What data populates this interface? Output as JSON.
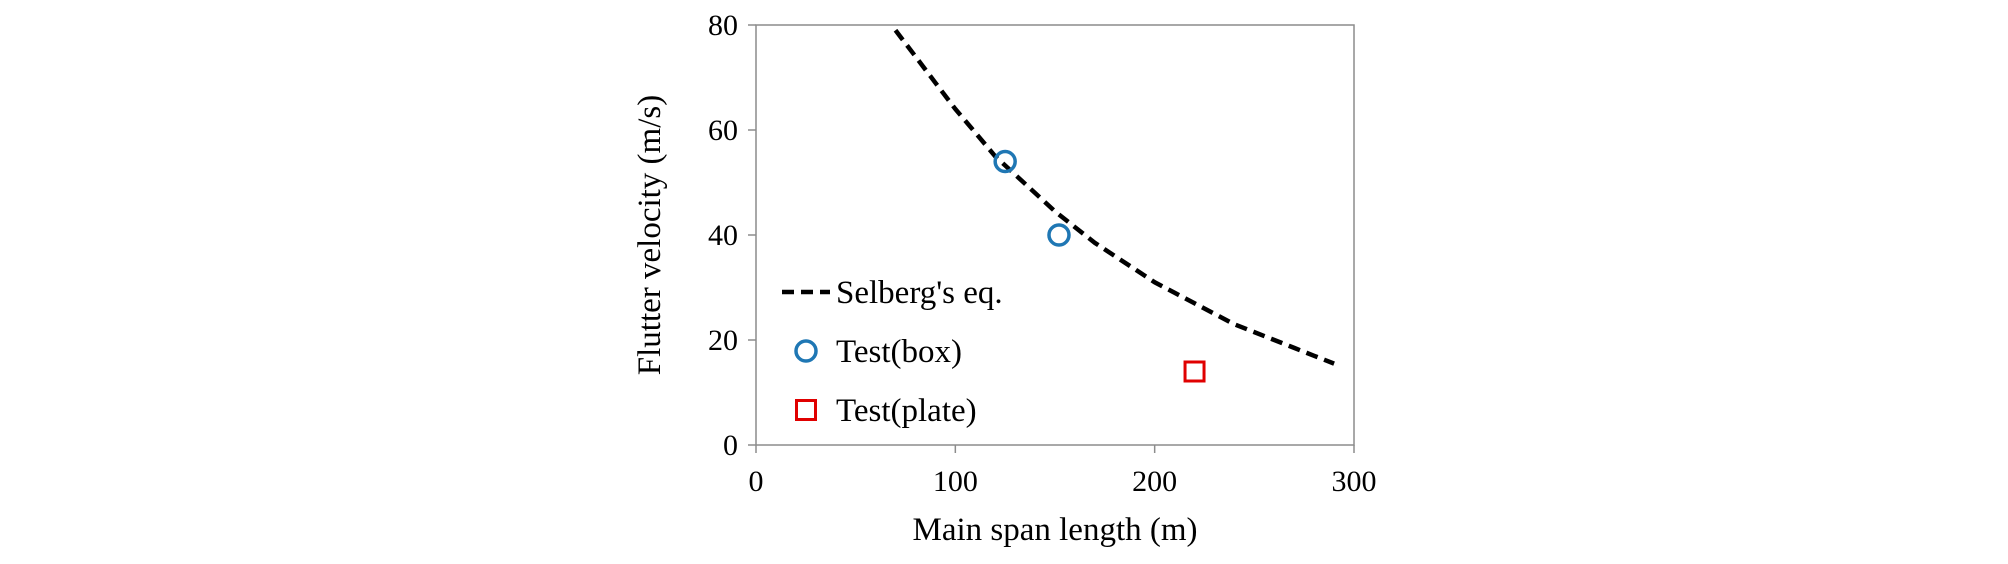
{
  "chart_data": {
    "type": "scatter",
    "title": "",
    "xlabel": "Main span length (m)",
    "ylabel": "Flutter velocity (m/s)",
    "xlim": [
      0,
      300
    ],
    "ylim": [
      0,
      80
    ],
    "xticks": [
      0,
      100,
      200,
      300
    ],
    "yticks": [
      0,
      20,
      40,
      60,
      80
    ],
    "x_tick_labels": [
      "0",
      "100",
      "200",
      "300"
    ],
    "y_tick_labels": [
      "0",
      "20",
      "40",
      "60",
      "80"
    ],
    "grid": false,
    "legend_position": "left",
    "series": [
      {
        "name": "Selberg's eq.",
        "kind": "line",
        "style": "dashed",
        "color": "#000000",
        "points": [
          {
            "x": 70,
            "y": 79
          },
          {
            "x": 80,
            "y": 74
          },
          {
            "x": 90,
            "y": 69
          },
          {
            "x": 100,
            "y": 64
          },
          {
            "x": 110,
            "y": 59.5
          },
          {
            "x": 120,
            "y": 55
          },
          {
            "x": 130,
            "y": 51.5
          },
          {
            "x": 140,
            "y": 48
          },
          {
            "x": 150,
            "y": 44.5
          },
          {
            "x": 160,
            "y": 41.5
          },
          {
            "x": 170,
            "y": 38.5
          },
          {
            "x": 180,
            "y": 36
          },
          {
            "x": 190,
            "y": 33.5
          },
          {
            "x": 200,
            "y": 31
          },
          {
            "x": 210,
            "y": 29
          },
          {
            "x": 220,
            "y": 27
          },
          {
            "x": 230,
            "y": 25
          },
          {
            "x": 240,
            "y": 23
          },
          {
            "x": 250,
            "y": 21.5
          },
          {
            "x": 260,
            "y": 20
          },
          {
            "x": 270,
            "y": 18.5
          },
          {
            "x": 280,
            "y": 17
          },
          {
            "x": 290,
            "y": 15.5
          }
        ]
      },
      {
        "name": "Test(box)",
        "kind": "scatter",
        "marker": "circle",
        "color": "#1f77b4",
        "points": [
          {
            "x": 125,
            "y": 54
          },
          {
            "x": 152,
            "y": 40
          }
        ]
      },
      {
        "name": "Test(plate)",
        "kind": "scatter",
        "marker": "square",
        "color": "#e00000",
        "points": [
          {
            "x": 220,
            "y": 14
          }
        ]
      }
    ]
  }
}
